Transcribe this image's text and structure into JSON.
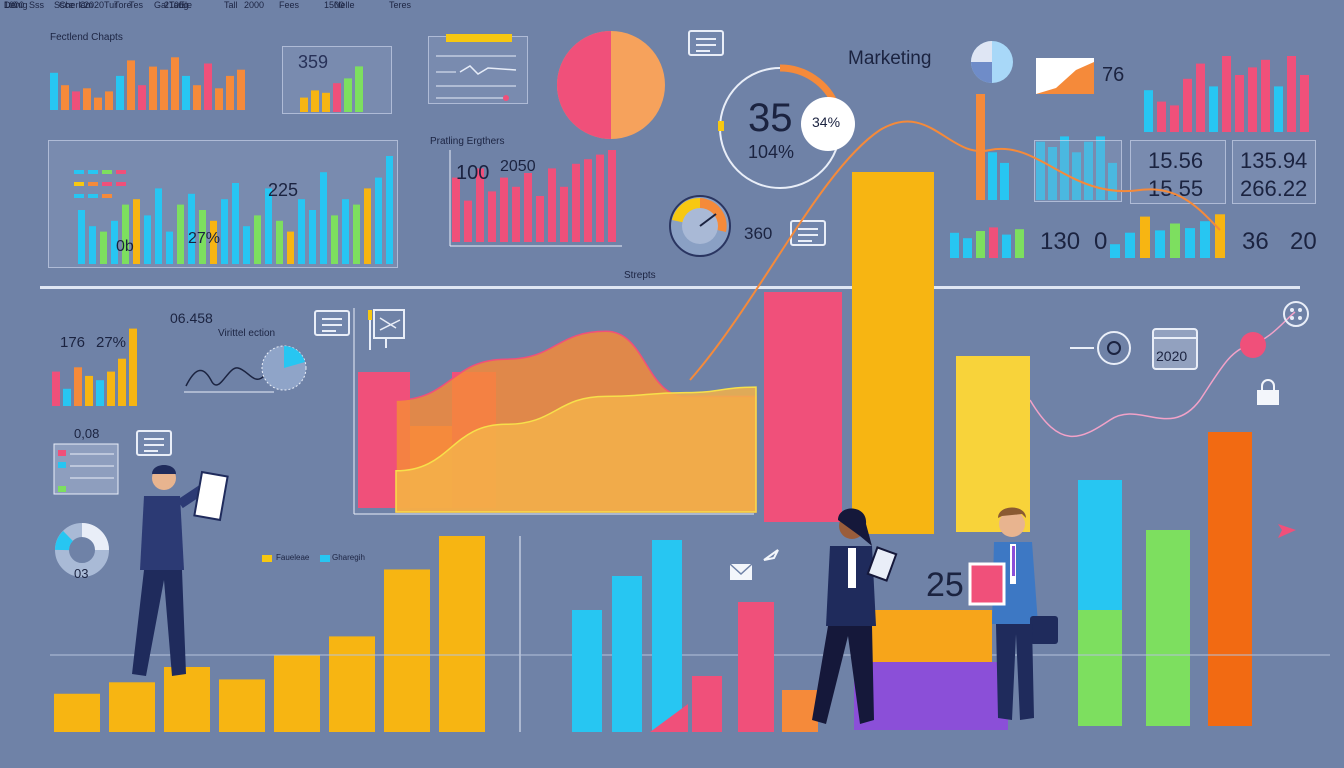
{
  "panels": {
    "top_left_title": "Fectlend Chapts",
    "mid_title": "Pratling Ergthers",
    "marketing_title": "Marketing",
    "divider_label": "Strepts",
    "viewer_label": "Virittel ection",
    "legend_a": "Faueleae",
    "legend_b": "Gharegih"
  },
  "numbers": {
    "n359": "359",
    "n225": "225",
    "n0b": "0b",
    "n27p": "27%",
    "n100": "100",
    "n2050": "2050",
    "n35": "35",
    "n104": "104%",
    "n34": "34%",
    "n360": "360",
    "n76": "76",
    "n1556": "15.56",
    "n1555": "15.55",
    "n13594": "135.94",
    "n26622": "266.22",
    "n130": "130",
    "n0": "0",
    "n36": "36",
    "n20": "20",
    "n06458": "06.458",
    "n176": "176",
    "n27b": "27%",
    "n008": "0,08",
    "n03": "03",
    "n25": "25",
    "n2020": "2020"
  },
  "axes": {
    "top_left_x": [
      "Lr0",
      "Sss",
      "Ssce",
      "Cm",
      "Tur",
      "Tes",
      "Gal",
      "Ele"
    ],
    "main_x": [
      "1000",
      "2020",
      "2100",
      "2000",
      "1500"
    ],
    "bottom_x": [
      "Denig",
      "Cherle",
      "Tore",
      "Tang",
      "Tall",
      "Fees",
      "Nelle",
      "Teres"
    ]
  },
  "chart_data": [
    {
      "type": "bar",
      "title": "",
      "categories": [
        "Denig",
        "Cherle",
        "Tore",
        "Tang",
        "Tall",
        "Fees",
        "Nelle",
        "Teres"
      ],
      "series": [
        {
          "name": "Faueleae",
          "values": [
            40,
            52,
            68,
            55,
            80,
            100,
            170,
            205
          ]
        }
      ]
    },
    {
      "type": "area",
      "x": [
        "1000",
        "2020",
        "2100",
        "2000",
        "1500"
      ],
      "series": [
        {
          "values": [
            58,
            80,
            95,
            60,
            60
          ]
        },
        {
          "values": [
            20,
            45,
            60,
            62,
            65
          ]
        }
      ]
    }
  ],
  "colors": {
    "yellow": "#f7b512",
    "pink": "#f0507a",
    "orange": "#f58a3a",
    "cyan": "#27c6f2",
    "green": "#7ddf5f",
    "purple": "#8b4fd8",
    "navy": "#1f2b5c"
  }
}
